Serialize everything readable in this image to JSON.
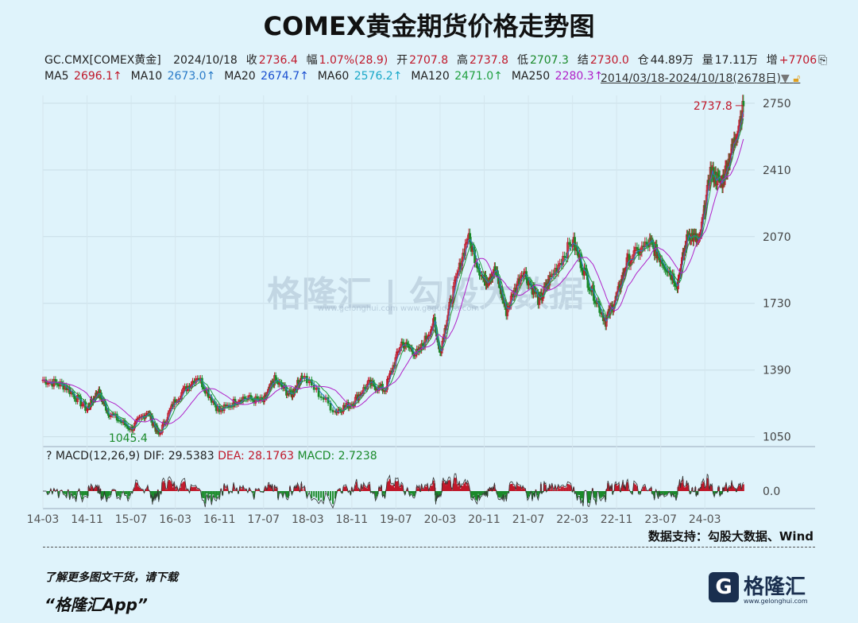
{
  "title": "COMEX黄金期货价格走势图",
  "quote": {
    "symbol": "GC.CMX[COMEX黄金]",
    "date": "2024/10/18",
    "close_label": "收",
    "close": "2736.4",
    "change_label": "幅",
    "change": "1.07%(28.9)",
    "open_label": "开",
    "open": "2707.8",
    "high_label": "高",
    "high": "2737.8",
    "low_label": "低",
    "low": "2707.3",
    "settle_label": "结",
    "settle": "2730.0",
    "oi_label": "仓",
    "oi": "44.89万",
    "vol_label": "量",
    "vol": "17.11万",
    "incr_label": "增",
    "incr": "+7706",
    "incr_tail": "⎘"
  },
  "ma": {
    "ma5_label": "MA5",
    "ma5": "2696.1↑",
    "ma10_label": "MA10",
    "ma10": "2673.0↑",
    "ma20_label": "MA20",
    "ma20": "2674.7↑",
    "ma60_label": "MA60",
    "ma60": "2576.2↑",
    "ma120_label": "MA120",
    "ma120": "2471.0↑",
    "ma250_label": "MA250",
    "ma250": "2280.3↑",
    "range": "2014/03/18-2024/10/18(2678日)",
    "range_arrow": "▼",
    "lock_icon": "lock-icon"
  },
  "macd": {
    "q": "?",
    "label": "MACD(12,26,9)",
    "dif_label": "DIF:",
    "dif": "29.5383",
    "dea_label": "DEA:",
    "dea": "28.1763",
    "macd_label": "MACD:",
    "macd": "2.7238"
  },
  "watermark": "格隆汇 | 勾股大数据",
  "watermark_url": "www.gelonghui.com        www.gogudata.com",
  "source": "数据支持：勾股大数据、Wind",
  "footer": {
    "line1": "了解更多图文干货，请下载",
    "line2": "“格隆汇App”",
    "logo_g": "G",
    "logo_text": "格隆汇",
    "logo_url": "www.gelonghui.com"
  },
  "colors": {
    "up": "#c0182a",
    "down": "#1a8a2a",
    "ma5": "#c0182a",
    "ma10": "#2a7bc8",
    "ma20": "#1a4fd0",
    "ma60": "#1aa8c8",
    "ma120": "#20a040",
    "ma250": "#b020c8"
  },
  "chart_data": {
    "type": "line",
    "title": "COMEX黄金期货价格走势图",
    "y_ticks": [
      2750,
      2410,
      2070,
      1730,
      1390,
      1050
    ],
    "ylim": [
      1000,
      2790
    ],
    "x_ticks": [
      "14-03",
      "14-11",
      "15-07",
      "16-03",
      "16-11",
      "17-07",
      "18-03",
      "18-11",
      "19-07",
      "20-03",
      "20-11",
      "21-07",
      "22-03",
      "22-11",
      "23-07",
      "24-03"
    ],
    "annotations": [
      {
        "text": "2737.8",
        "date": "2024-10-18",
        "value": 2737.8
      },
      {
        "text": "1045.4",
        "date": "2015-12",
        "value": 1045.4
      }
    ],
    "series": [
      {
        "values": [
          {
            "date": "2014-03",
            "v": 1340
          },
          {
            "date": "2014-07",
            "v": 1310
          },
          {
            "date": "2014-11",
            "v": 1190
          },
          {
            "date": "2015-01",
            "v": 1280
          },
          {
            "date": "2015-03",
            "v": 1170
          },
          {
            "date": "2015-07",
            "v": 1090
          },
          {
            "date": "2015-10",
            "v": 1180
          },
          {
            "date": "2015-12",
            "v": 1060
          },
          {
            "date": "2016-03",
            "v": 1240
          },
          {
            "date": "2016-07",
            "v": 1360
          },
          {
            "date": "2016-11",
            "v": 1180
          },
          {
            "date": "2017-03",
            "v": 1250
          },
          {
            "date": "2017-07",
            "v": 1230
          },
          {
            "date": "2017-09",
            "v": 1340
          },
          {
            "date": "2017-12",
            "v": 1260
          },
          {
            "date": "2018-02",
            "v": 1360
          },
          {
            "date": "2018-08",
            "v": 1180
          },
          {
            "date": "2018-11",
            "v": 1220
          },
          {
            "date": "2019-02",
            "v": 1320
          },
          {
            "date": "2019-05",
            "v": 1290
          },
          {
            "date": "2019-08",
            "v": 1530
          },
          {
            "date": "2019-11",
            "v": 1470
          },
          {
            "date": "2020-02",
            "v": 1640
          },
          {
            "date": "2020-03",
            "v": 1480
          },
          {
            "date": "2020-05",
            "v": 1750
          },
          {
            "date": "2020-08",
            "v": 2070
          },
          {
            "date": "2020-11",
            "v": 1840
          },
          {
            "date": "2021-01",
            "v": 1900
          },
          {
            "date": "2021-03",
            "v": 1690
          },
          {
            "date": "2021-06",
            "v": 1900
          },
          {
            "date": "2021-09",
            "v": 1740
          },
          {
            "date": "2021-11",
            "v": 1860
          },
          {
            "date": "2022-03",
            "v": 2050
          },
          {
            "date": "2022-06",
            "v": 1830
          },
          {
            "date": "2022-09",
            "v": 1640
          },
          {
            "date": "2022-11",
            "v": 1760
          },
          {
            "date": "2023-01",
            "v": 1950
          },
          {
            "date": "2023-05",
            "v": 2040
          },
          {
            "date": "2023-07",
            "v": 1960
          },
          {
            "date": "2023-10",
            "v": 1830
          },
          {
            "date": "2023-12",
            "v": 2090
          },
          {
            "date": "2024-02",
            "v": 2040
          },
          {
            "date": "2024-04",
            "v": 2400
          },
          {
            "date": "2024-06",
            "v": 2340
          },
          {
            "date": "2024-08",
            "v": 2520
          },
          {
            "date": "2024-10",
            "v": 2736
          }
        ]
      }
    ]
  }
}
